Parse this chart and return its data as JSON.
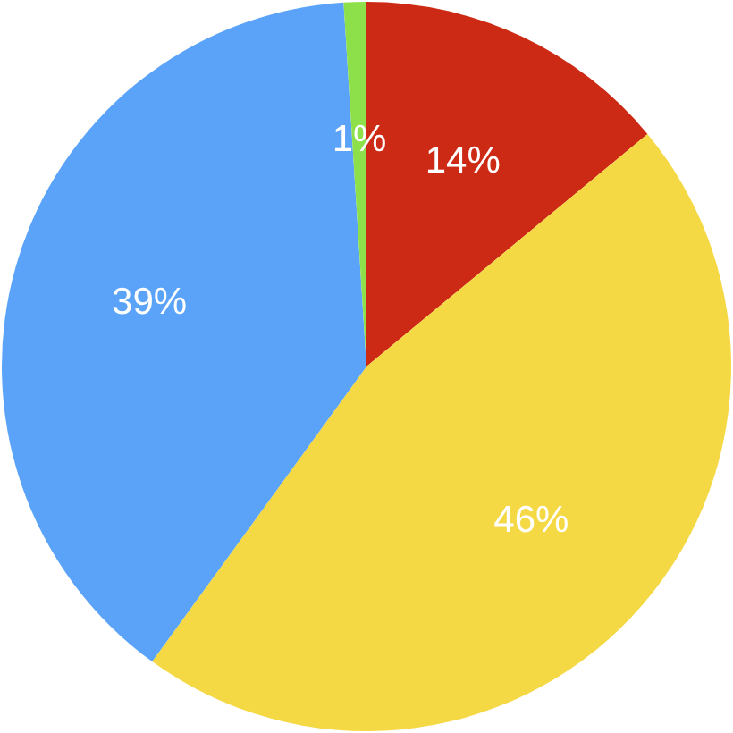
{
  "chart_data": {
    "type": "pie",
    "categories": [
      null,
      null,
      null,
      null
    ],
    "values": [
      14,
      46,
      39,
      1
    ],
    "colors": [
      "#cc2a14",
      "#f4d844",
      "#5aa3f8",
      "#8ee04a"
    ],
    "value_labels": [
      "14%",
      "46%",
      "39%",
      "1%"
    ]
  }
}
